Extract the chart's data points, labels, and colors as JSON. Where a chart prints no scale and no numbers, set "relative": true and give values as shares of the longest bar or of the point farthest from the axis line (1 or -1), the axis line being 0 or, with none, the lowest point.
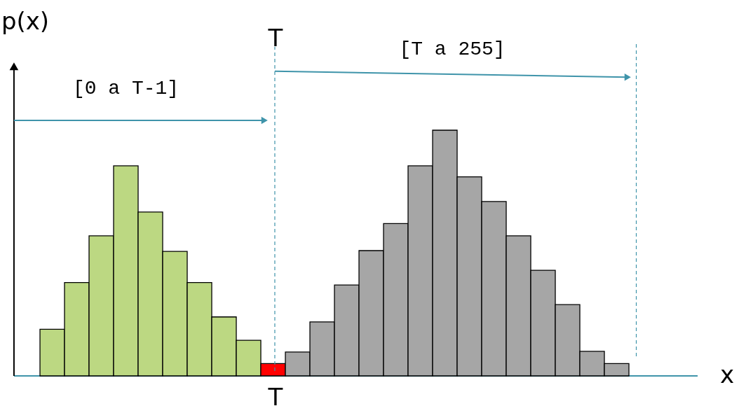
{
  "chart_data": {
    "type": "bar",
    "relative": true,
    "categories": [
      null,
      null,
      null,
      null,
      null,
      null,
      null,
      null,
      null,
      null,
      null,
      null,
      null,
      null,
      null,
      null,
      null,
      null,
      null,
      null,
      null,
      null,
      null,
      null
    ],
    "values": [
      0.19,
      0.38,
      0.57,
      0.855,
      0.667,
      0.507,
      0.38,
      0.24,
      0.145,
      0.05,
      0.097,
      0.22,
      0.37,
      0.51,
      0.62,
      0.855,
      1,
      0.81,
      0.71,
      0.57,
      0.43,
      0.29,
      0.1,
      0.05
    ],
    "colors": [
      "#bcd882",
      "#bcd882",
      "#bcd882",
      "#bcd882",
      "#bcd882",
      "#bcd882",
      "#bcd882",
      "#bcd882",
      "#bcd882",
      "#ff0000",
      "#a6a6a6",
      "#a6a6a6",
      "#a6a6a6",
      "#a6a6a6",
      "#a6a6a6",
      "#a6a6a6",
      "#a6a6a6",
      "#a6a6a6",
      "#a6a6a6",
      "#a6a6a6",
      "#a6a6a6",
      "#a6a6a6",
      "#a6a6a6",
      "#a6a6a6"
    ],
    "xlabel": "x",
    "ylabel": "p(x)",
    "annotations": [
      "T",
      "T",
      "[0 a T-1]",
      "[T a 255]"
    ]
  }
}
